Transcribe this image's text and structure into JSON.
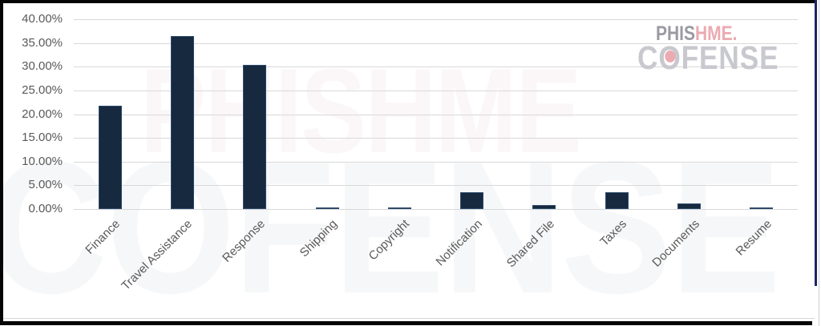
{
  "chart_data": {
    "type": "bar",
    "title": "",
    "xlabel": "",
    "ylabel": "",
    "unit": "percent",
    "categories": [
      "Finance",
      "Travel Assistance",
      "Response",
      "Shipping",
      "Copyright",
      "Notification",
      "Shared File",
      "Taxes",
      "Documents",
      "Resume"
    ],
    "values": [
      21.7,
      36.5,
      30.3,
      0.4,
      0.4,
      3.5,
      0.8,
      3.6,
      1.2,
      0.4
    ],
    "ylim": [
      0,
      40
    ],
    "yticks": [
      {
        "value": 40,
        "label": "40.00%"
      },
      {
        "value": 35,
        "label": "35.00%"
      },
      {
        "value": 30,
        "label": "30.00%"
      },
      {
        "value": 25,
        "label": "25.00%"
      },
      {
        "value": 20,
        "label": "20.00%"
      },
      {
        "value": 15,
        "label": "15.00%"
      },
      {
        "value": 10,
        "label": "10.00%"
      },
      {
        "value": 5,
        "label": "5.00%"
      },
      {
        "value": 0,
        "label": "0.00%"
      }
    ],
    "grid": true,
    "legend": false,
    "bar_color": "#16293F",
    "gridline_color": "#D9D9D9",
    "axis_text_color": "#595959"
  },
  "branding": {
    "phishme_dark": "PHIS",
    "phishme_red": "HME.",
    "cofense_c": "C",
    "cofense_o": "O",
    "cofense_rest": "FENSE",
    "accent_pink": "#ECAAB1",
    "logo_gray": "#C8C8CF"
  },
  "watermark": {
    "line1": "PHISHME",
    "line2": "COFENSE"
  }
}
